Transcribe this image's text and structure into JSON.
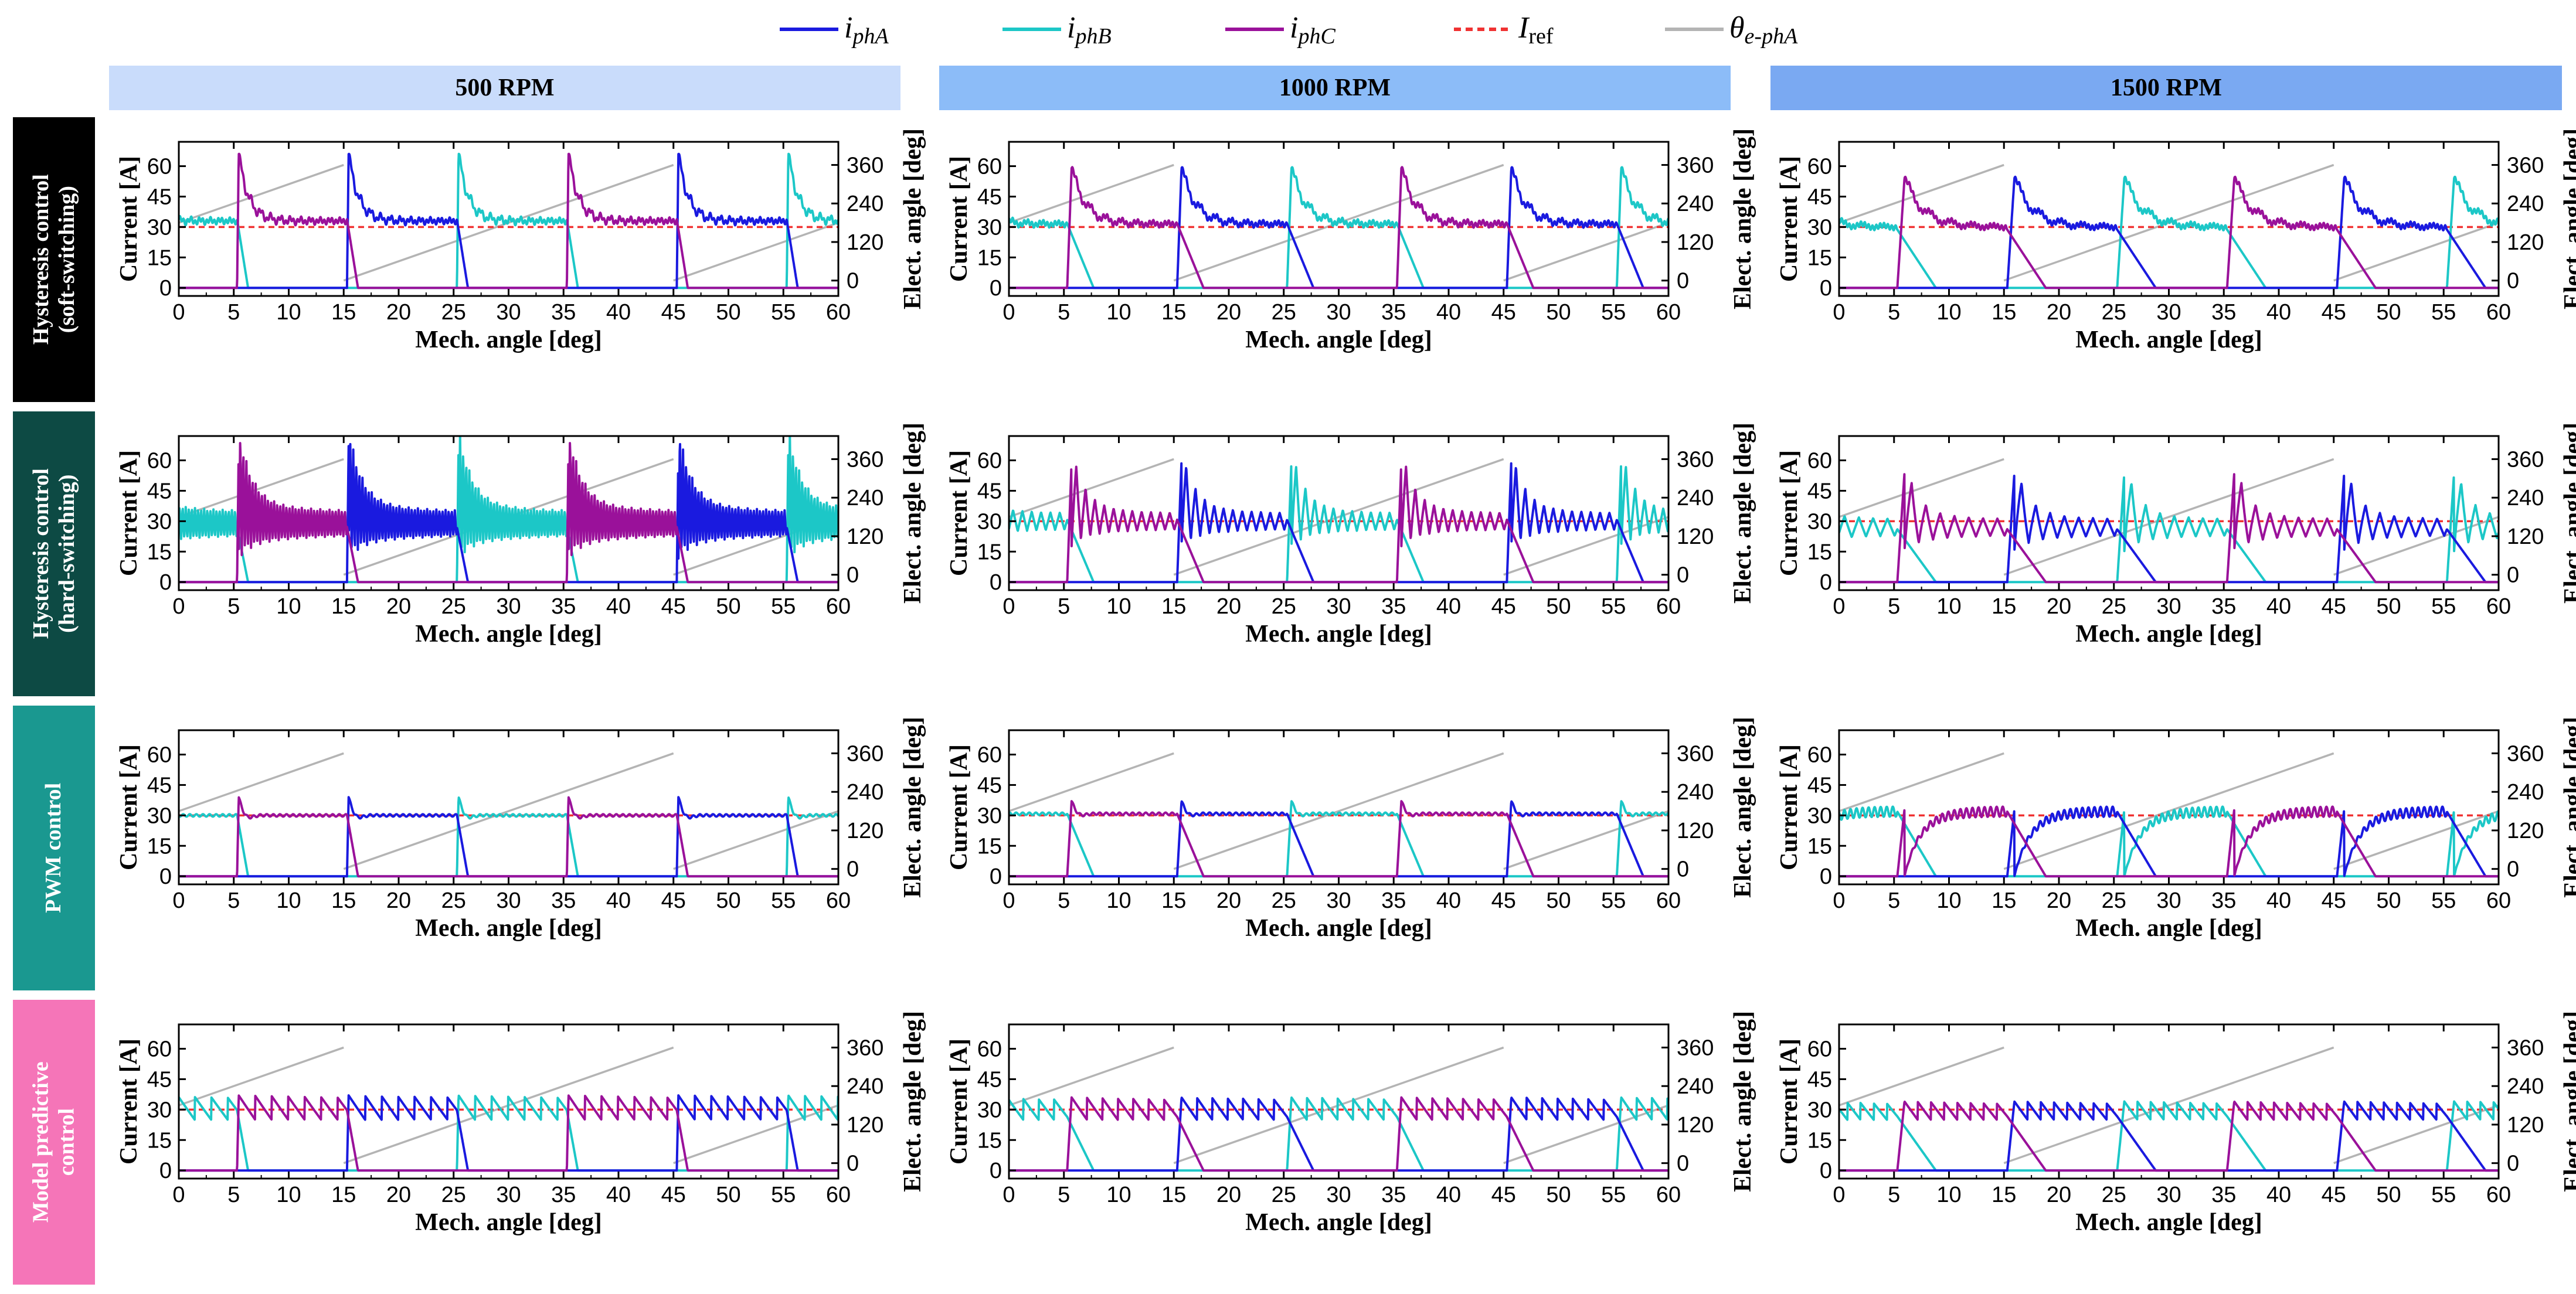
{
  "colors": {
    "phA": "#1a1adf",
    "phB": "#1cc7c7",
    "phC": "#9a119a",
    "ref": "#f03232",
    "theta": "#b4b4b4"
  },
  "legend": {
    "phA": {
      "main": "i",
      "sub": "phA"
    },
    "phB": {
      "main": "i",
      "sub": "phB"
    },
    "phC": {
      "main": "i",
      "sub": "phC"
    },
    "ref": {
      "main": "I",
      "sub": "ref"
    },
    "theta": {
      "main": "θ",
      "sub": "e-phA"
    }
  },
  "columns": [
    {
      "label": "500 RPM",
      "bg": "#c9dcfb"
    },
    {
      "label": "1000 RPM",
      "bg": "#8cbcf8"
    },
    {
      "label": "1500 RPM",
      "bg": "#7aa9f2"
    }
  ],
  "rows": [
    {
      "label": "Hysteresis control\n(soft-switching)",
      "bg": "#000000"
    },
    {
      "label": "Hysteresis control\n(hard-switching)",
      "bg": "#0d4a44"
    },
    {
      "label": "PWM control",
      "bg": "#1a9890"
    },
    {
      "label": "Model predictive\ncontrol",
      "bg": "#f575b8"
    }
  ],
  "chart_data": {
    "type": "line",
    "panel_grid": "4 rows x 3 columns",
    "xlabel": "Mech. angle [deg]",
    "ylabel": "Current [A]",
    "y2label": "Elect. angle [deg]",
    "xlim": [
      0,
      60
    ],
    "xticks": [
      0,
      5,
      10,
      15,
      20,
      25,
      30,
      35,
      40,
      45,
      50,
      55,
      60
    ],
    "ylim": [
      -4,
      72
    ],
    "yticks": [
      0,
      15,
      30,
      45,
      60
    ],
    "y2lim": [
      -48,
      432
    ],
    "y2ticks": [
      0,
      120,
      240,
      360
    ],
    "series_names": [
      "iphA",
      "iphB",
      "iphC",
      "Iref",
      "θe-phA"
    ],
    "reference_current": 30,
    "electrical_period_deg": 30,
    "conduction_period_deg": 10,
    "phase_order": "C, A, B (turn-on at 5.3, 15.3, 25.3, 35.3, 45.3, 55.3 deg)",
    "theta_ramp": {
      "period_deg": 30,
      "min": 0,
      "max": 360,
      "resets_at": [
        15,
        45
      ]
    },
    "panels": [
      {
        "row": 0,
        "col": 0,
        "peak": 66,
        "tail_deg": 1.0,
        "ripple": "soft-switching, decaying oscillation to 33 A"
      },
      {
        "row": 0,
        "col": 1,
        "peak": 59,
        "tail_deg": 2.4,
        "ripple": "soft-switching, settles near 31 A"
      },
      {
        "row": 0,
        "col": 2,
        "peak": 54,
        "tail_deg": 3.5,
        "ripple": "soft-switching, settles near 30 A"
      },
      {
        "row": 1,
        "col": 0,
        "peak": 67,
        "tail_deg": 1.0,
        "ripple": "hard-switching, large chattering 20–40 A"
      },
      {
        "row": 1,
        "col": 1,
        "peak": 60,
        "tail_deg": 2.4,
        "ripple": "hard-switching, 23–37 A"
      },
      {
        "row": 1,
        "col": 2,
        "peak": 54,
        "tail_deg": 3.5,
        "ripple": "hard-switching, 20–33 A"
      },
      {
        "row": 2,
        "col": 0,
        "peak": 39,
        "tail_deg": 1.0,
        "ripple": "PWM, settles at 30 A"
      },
      {
        "row": 2,
        "col": 1,
        "peak": 37,
        "tail_deg": 2.4,
        "ripple": "PWM, settles at 31 A"
      },
      {
        "row": 2,
        "col": 2,
        "peak": 33,
        "tail_deg": 3.5,
        "ripple": "PWM, slow rise to 30–33 A"
      },
      {
        "row": 3,
        "col": 0,
        "peak": 37,
        "tail_deg": 1.0,
        "ripple": "MPC, 25–36 A sawtooth"
      },
      {
        "row": 3,
        "col": 1,
        "peak": 36,
        "tail_deg": 2.4,
        "ripple": "MPC, 26–35 A sawtooth"
      },
      {
        "row": 3,
        "col": 2,
        "peak": 34,
        "tail_deg": 3.5,
        "ripple": "MPC, 25–34 A sawtooth"
      }
    ]
  }
}
